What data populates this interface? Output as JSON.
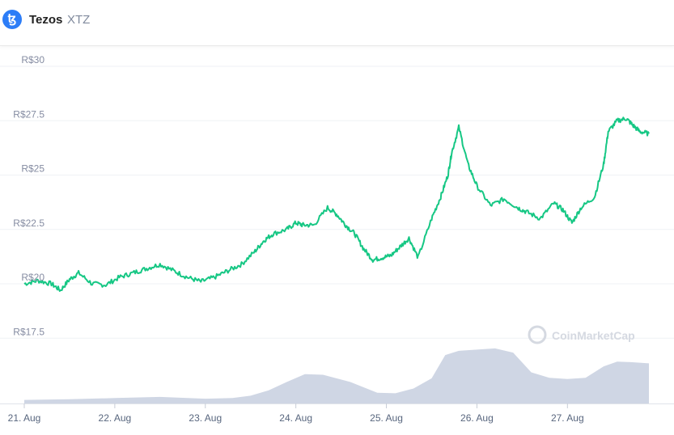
{
  "header": {
    "logo_glyph": "ꜩ",
    "name": "Tezos",
    "symbol": "XTZ"
  },
  "watermark": "CoinMarketCap",
  "colors": {
    "price_line": "#16c784",
    "volume_fill": "#cfd6e4",
    "grid": "#eff2f5"
  },
  "chart_data": {
    "type": "line",
    "title": "",
    "xlabel": "",
    "ylabel": "",
    "y_ticks": [
      "R$30",
      "R$27.5",
      "R$25",
      "R$22.5",
      "R$20",
      "R$17.5"
    ],
    "y_tick_values": [
      30,
      27.5,
      25,
      22.5,
      20,
      17.5
    ],
    "ylim": [
      16.5,
      30.2
    ],
    "x_ticks": [
      "21. Aug",
      "22. Aug",
      "23. Aug",
      "24. Aug",
      "25. Aug",
      "26. Aug",
      "27. Aug"
    ],
    "x_tick_values": [
      21,
      22,
      23,
      24,
      25,
      26,
      27
    ],
    "xlim": [
      21,
      27.9
    ],
    "grid": true,
    "series": [
      {
        "kind": "price",
        "x": [
          21.0,
          21.15,
          21.3,
          21.4,
          21.5,
          21.6,
          21.75,
          21.9,
          22.05,
          22.2,
          22.35,
          22.5,
          22.65,
          22.8,
          22.95,
          23.1,
          23.25,
          23.4,
          23.55,
          23.65,
          23.75,
          23.9,
          24.0,
          24.08,
          24.2,
          24.35,
          24.45,
          24.55,
          24.65,
          24.75,
          24.85,
          24.95,
          25.05,
          25.15,
          25.25,
          25.35,
          25.5,
          25.6,
          25.68,
          25.72,
          25.8,
          25.9,
          26.0,
          26.15,
          26.3,
          26.45,
          26.55,
          26.7,
          26.85,
          26.95,
          27.05,
          27.15,
          27.3,
          27.4,
          27.45,
          27.55,
          27.65,
          27.72,
          27.8,
          27.9
        ],
        "y": [
          20.0,
          20.15,
          20.0,
          19.7,
          20.2,
          20.5,
          20.0,
          19.95,
          20.3,
          20.5,
          20.7,
          20.9,
          20.6,
          20.3,
          20.1,
          20.3,
          20.6,
          20.9,
          21.5,
          22.0,
          22.3,
          22.5,
          22.8,
          22.7,
          22.7,
          23.5,
          23.2,
          22.7,
          22.3,
          21.6,
          21.1,
          21.2,
          21.3,
          21.7,
          22.1,
          21.2,
          23.0,
          24.0,
          25.0,
          26.0,
          27.2,
          25.5,
          24.5,
          23.6,
          23.9,
          23.5,
          23.3,
          23.0,
          23.7,
          23.4,
          22.8,
          23.5,
          24.0,
          25.5,
          27.0,
          27.5,
          27.6,
          27.3,
          27.0,
          26.9
        ]
      },
      {
        "kind": "volume",
        "x": [
          21.0,
          21.5,
          22.0,
          22.5,
          23.0,
          23.3,
          23.5,
          23.7,
          23.9,
          24.1,
          24.3,
          24.6,
          24.9,
          25.1,
          25.3,
          25.5,
          25.65,
          25.8,
          26.0,
          26.2,
          26.4,
          26.6,
          26.8,
          27.0,
          27.2,
          27.4,
          27.55,
          27.7,
          27.9
        ],
        "y": [
          0.06,
          0.07,
          0.09,
          0.11,
          0.08,
          0.09,
          0.13,
          0.22,
          0.36,
          0.49,
          0.48,
          0.36,
          0.18,
          0.17,
          0.25,
          0.42,
          0.81,
          0.88,
          0.9,
          0.92,
          0.85,
          0.52,
          0.43,
          0.41,
          0.43,
          0.62,
          0.7,
          0.69,
          0.67
        ]
      }
    ]
  }
}
